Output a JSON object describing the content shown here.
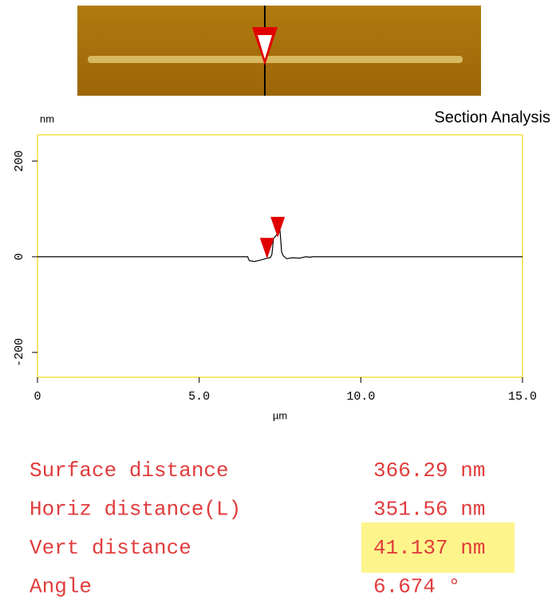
{
  "chart_data": {
    "type": "line",
    "title": "Section Analysis",
    "y_label": "nm",
    "x_label": "µm",
    "x": [
      0,
      6.5,
      6.55,
      6.7,
      6.9,
      7.0,
      7.1,
      7.2,
      7.25,
      7.3,
      7.35,
      7.45,
      7.5,
      7.55,
      7.6,
      7.7,
      7.9,
      8.1,
      8.3,
      8.45,
      8.5,
      15
    ],
    "series": [
      {
        "color": "#000000",
        "values": [
          0,
          0,
          -8,
          -10,
          -7,
          -5,
          -3,
          -2,
          5,
          38,
          42,
          50,
          55,
          10,
          2,
          -4,
          -2,
          -3,
          0,
          -1,
          0,
          0
        ]
      }
    ],
    "cursors": [
      {
        "x": 7.1,
        "y": -4,
        "color": "#e00000"
      },
      {
        "x": 7.43,
        "y": 40,
        "color": "#e00000"
      }
    ],
    "xlim": [
      0,
      15
    ],
    "ylim": [
      -252,
      255
    ],
    "xticks": [
      0,
      {
        "value": 5,
        "label": "5.0"
      },
      {
        "value": 10,
        "label": "10.0"
      },
      {
        "value": 15,
        "label": "15.0"
      }
    ],
    "yticks": [
      -200,
      0,
      200
    ],
    "frame_color": "#f0e040"
  },
  "measurements": {
    "highlight_row": 2,
    "highlight_color": "#fdf58c",
    "text_color": "#e03c3c",
    "rows": [
      {
        "label": "Surface distance",
        "value": "366.29 nm"
      },
      {
        "label": "Horiz distance(L)",
        "value": "351.56 nm"
      },
      {
        "label": "Vert distance",
        "value": "41.137 nm"
      },
      {
        "label": "Angle",
        "value": "6.674 °"
      }
    ]
  }
}
